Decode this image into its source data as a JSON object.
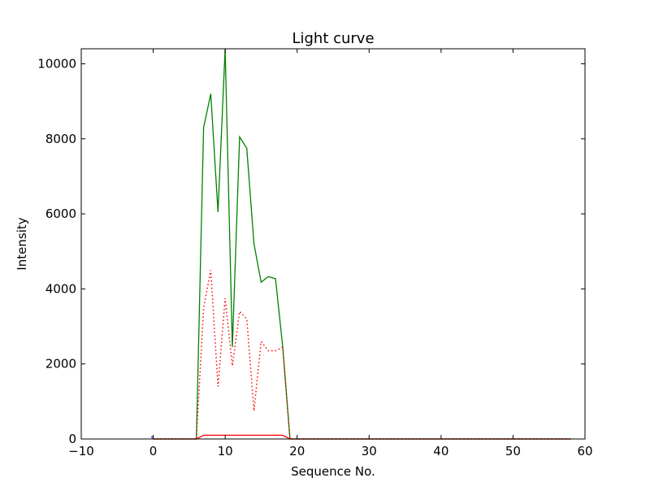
{
  "chart_data": {
    "type": "line",
    "title": "Light curve",
    "xlabel": "Sequence No.",
    "ylabel": "Intensity",
    "xlim": [
      -10,
      60
    ],
    "ylim": [
      0,
      10400
    ],
    "xticks": [
      -10,
      0,
      10,
      20,
      30,
      40,
      50,
      60
    ],
    "yticks": [
      0,
      2000,
      4000,
      6000,
      8000,
      10000
    ],
    "grid": false,
    "series": [
      {
        "name": "green",
        "color": "#008000",
        "style": "solid",
        "x": [
          0,
          6,
          7,
          8,
          9,
          10,
          11,
          12,
          13,
          14,
          15,
          16,
          17,
          18,
          19,
          58
        ],
        "y": [
          0,
          0,
          8300,
          9200,
          6050,
          10400,
          2450,
          8050,
          7750,
          5200,
          4180,
          4330,
          4270,
          2450,
          0,
          0
        ]
      },
      {
        "name": "red-dotted",
        "color": "#ff0000",
        "style": "dotted",
        "x": [
          0,
          6,
          7,
          8,
          9,
          10,
          11,
          12,
          13,
          14,
          15,
          16,
          17,
          18,
          19,
          58
        ],
        "y": [
          0,
          0,
          3500,
          4500,
          1400,
          3750,
          1950,
          3400,
          3200,
          750,
          2600,
          2350,
          2350,
          2450,
          0,
          0
        ]
      },
      {
        "name": "red-solid",
        "color": "#ff0000",
        "style": "solid",
        "x": [
          0,
          6,
          7,
          18,
          19,
          58
        ],
        "y": [
          0,
          0,
          100,
          100,
          0,
          0
        ]
      },
      {
        "name": "blue",
        "color": "#0000ff",
        "style": "solid",
        "x": [
          -0.3,
          0
        ],
        "y": [
          50,
          50
        ]
      }
    ]
  }
}
